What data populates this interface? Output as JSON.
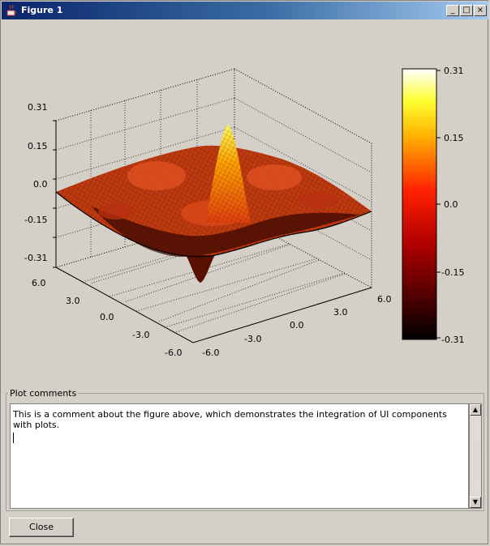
{
  "window": {
    "title": "Figure 1",
    "minimize_label": "_",
    "maximize_label": "□",
    "close_label": "×"
  },
  "plot": {
    "z_ticks": [
      "0.31",
      "0.15",
      "0.0",
      "-0.15",
      "-0.31"
    ],
    "y_ticks": [
      "6.0",
      "3.0",
      "0.0",
      "-3.0",
      "-6.0"
    ],
    "x_ticks": [
      "-6.0",
      "-3.0",
      "0.0",
      "3.0",
      "6.0"
    ],
    "colorbar_ticks": [
      "0.31",
      "0.15",
      "0.0",
      "-0.15",
      "-0.31"
    ],
    "colormap": "hot"
  },
  "chart_data": {
    "type": "surface",
    "x_range": [
      -6.0,
      6.0
    ],
    "y_range": [
      -6.0,
      6.0
    ],
    "zlim": [
      -0.31,
      0.31
    ],
    "x_ticks": [
      -6.0,
      -3.0,
      0.0,
      3.0,
      6.0
    ],
    "y_ticks": [
      -6.0,
      -3.0,
      0.0,
      3.0,
      6.0
    ],
    "z_ticks": [
      -0.31,
      -0.15,
      0.0,
      0.15,
      0.31
    ],
    "colorbar": {
      "min": -0.31,
      "max": 0.31,
      "ticks": [
        -0.31,
        -0.15,
        0.0,
        0.15,
        0.31
      ]
    },
    "grid": true
  },
  "comments": {
    "legend": "Plot comments",
    "text": "This is a comment about the figure above, which demonstrates the integration of UI components with plots."
  },
  "buttons": {
    "close_label": "Close",
    "scroll_up": "▲",
    "scroll_down": "▼"
  }
}
